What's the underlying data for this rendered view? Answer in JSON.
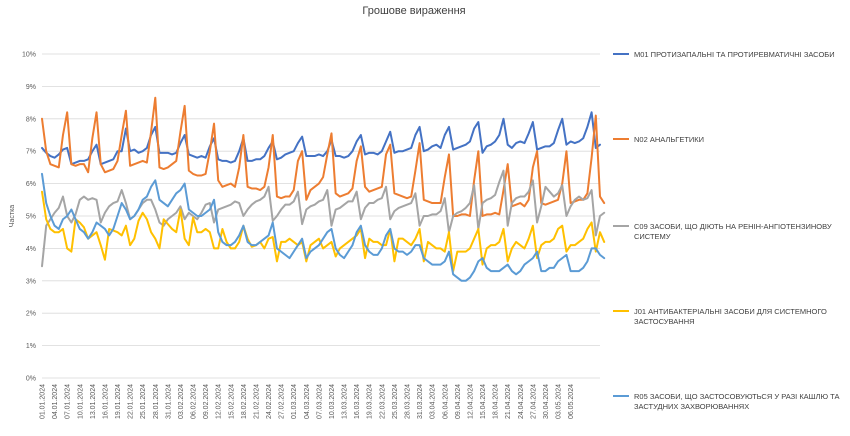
{
  "chart_data": {
    "type": "line",
    "title": "Грошове вираження",
    "xlabel": "",
    "ylabel": "Частка",
    "ylim": [
      0,
      10
    ],
    "yticks": [
      "0%",
      "1%",
      "2%",
      "3%",
      "4%",
      "5%",
      "6%",
      "7%",
      "8%",
      "9%",
      "10%"
    ],
    "x_start": "01.01.2024",
    "x_end": "07.05.2024",
    "x_tick_labels": [
      "01.01.2024",
      "04.01.2024",
      "07.01.2024",
      "10.01.2024",
      "13.01.2024",
      "16.01.2024",
      "19.01.2024",
      "22.01.2024",
      "25.01.2024",
      "28.01.2024",
      "31.01.2024",
      "03.02.2024",
      "06.02.2024",
      "09.02.2024",
      "12.02.2024",
      "15.02.2024",
      "18.02.2024",
      "21.02.2024",
      "24.02.2024",
      "27.02.2024",
      "01.03.2024",
      "04.03.2024",
      "07.03.2024",
      "10.03.2024",
      "13.03.2024",
      "16.03.2024",
      "19.03.2024",
      "22.03.2024",
      "25.03.2024",
      "28.03.2024",
      "31.03.2024",
      "03.04.2024",
      "06.04.2024",
      "09.04.2024",
      "12.04.2024",
      "15.04.2024",
      "18.04.2024",
      "21.04.2024",
      "24.04.2024",
      "27.04.2024",
      "30.04.2024",
      "03.05.2024",
      "06.05.2024"
    ],
    "grid": true,
    "legend_position": "right",
    "series": [
      {
        "name": "M01 ПРОТИЗАПАЛЬНІ ТА ПРОТИРЕВМАТИЧНІ ЗАСОБИ",
        "color": "#4472C4",
        "values": [
          7.1,
          6.95,
          6.85,
          6.8,
          6.9,
          7.05,
          7.1,
          6.6,
          6.65,
          6.7,
          6.7,
          6.75,
          7.0,
          7.2,
          6.6,
          6.65,
          6.7,
          6.75,
          7.0,
          7.0,
          7.7,
          7.0,
          7.05,
          6.95,
          7.0,
          7.1,
          7.5,
          7.75,
          6.95,
          6.95,
          6.95,
          6.9,
          6.95,
          7.25,
          7.5,
          6.9,
          6.85,
          6.8,
          6.85,
          6.8,
          7.15,
          7.4,
          6.75,
          6.7,
          6.7,
          6.65,
          6.7,
          7.0,
          7.4,
          6.7,
          6.7,
          6.75,
          6.75,
          6.85,
          7.1,
          7.3,
          6.75,
          6.8,
          6.9,
          6.95,
          7.0,
          7.25,
          7.45,
          6.85,
          6.85,
          6.85,
          6.9,
          6.85,
          7.0,
          7.35,
          6.85,
          6.85,
          6.8,
          6.85,
          7.0,
          7.3,
          7.5,
          6.9,
          6.95,
          6.95,
          6.9,
          7.0,
          7.3,
          7.6,
          6.95,
          7.0,
          7.0,
          7.05,
          7.1,
          7.5,
          7.75,
          7.0,
          7.05,
          7.15,
          7.2,
          7.1,
          7.5,
          7.75,
          7.05,
          7.1,
          7.15,
          7.2,
          7.3,
          7.7,
          7.9,
          6.95,
          7.15,
          7.2,
          7.3,
          7.5,
          8.0,
          7.2,
          7.1,
          7.25,
          7.3,
          7.25,
          7.55,
          7.9,
          7.05,
          7.1,
          7.15,
          7.15,
          7.25,
          7.65,
          8.0,
          7.2,
          7.3,
          7.25,
          7.3,
          7.4,
          7.75,
          8.2,
          7.1,
          7.2
        ]
      },
      {
        "name": "N02 АНАЛЬГЕТИКИ",
        "color": "#ED7D31",
        "values": [
          8.0,
          7.0,
          6.6,
          6.55,
          6.5,
          7.5,
          8.2,
          6.6,
          6.55,
          6.6,
          6.6,
          6.35,
          7.4,
          8.2,
          6.6,
          6.35,
          6.4,
          6.45,
          6.7,
          7.5,
          8.25,
          6.55,
          6.6,
          6.65,
          6.7,
          6.65,
          7.6,
          8.65,
          6.5,
          6.45,
          6.5,
          6.6,
          6.7,
          7.6,
          8.4,
          6.4,
          6.3,
          6.25,
          6.25,
          6.3,
          7.0,
          7.85,
          6.1,
          5.9,
          5.95,
          6.0,
          5.9,
          6.5,
          7.5,
          5.9,
          5.85,
          5.85,
          5.8,
          5.9,
          6.5,
          7.5,
          5.6,
          5.55,
          5.6,
          5.6,
          5.8,
          6.7,
          7.0,
          5.5,
          5.8,
          5.9,
          6.0,
          6.2,
          6.9,
          7.55,
          5.7,
          5.6,
          5.65,
          5.7,
          5.85,
          6.7,
          7.15,
          5.9,
          5.75,
          5.8,
          5.85,
          5.9,
          6.9,
          7.2,
          5.7,
          5.65,
          5.6,
          5.55,
          5.6,
          6.4,
          7.25,
          5.5,
          5.45,
          5.4,
          5.4,
          5.4,
          6.2,
          6.9,
          5.0,
          5.0,
          5.05,
          5.05,
          5.0,
          6.1,
          7.0,
          5.0,
          5.05,
          5.05,
          5.1,
          5.05,
          5.8,
          6.6,
          5.3,
          5.35,
          5.4,
          5.3,
          5.5,
          6.5,
          7.0,
          5.4,
          5.35,
          5.4,
          5.45,
          5.5,
          6.0,
          7.0,
          5.4,
          5.45,
          5.5,
          5.5,
          5.7,
          6.8,
          8.1,
          5.6,
          5.4
        ]
      },
      {
        "name": "C09 ЗАСОБИ, ЩО ДІЮТЬ НА РЕНІН-АНГІОТЕНЗИНОВУ СИСТЕМУ",
        "color": "#A5A5A5",
        "values": [
          3.45,
          4.7,
          4.9,
          5.1,
          5.25,
          5.6,
          5.0,
          4.8,
          5.05,
          5.5,
          5.6,
          5.5,
          5.55,
          5.5,
          4.8,
          5.1,
          5.3,
          5.4,
          5.45,
          5.8,
          5.4,
          4.9,
          5.0,
          5.2,
          5.4,
          5.5,
          5.5,
          5.2,
          4.8,
          4.7,
          4.9,
          5.0,
          5.1,
          5.3,
          4.9,
          5.1,
          5.0,
          4.9,
          5.1,
          5.35,
          5.4,
          4.8,
          5.2,
          5.25,
          5.3,
          5.35,
          5.45,
          5.4,
          5.0,
          5.2,
          5.35,
          5.45,
          5.5,
          5.6,
          5.9,
          4.85,
          5.0,
          5.2,
          5.35,
          5.35,
          5.45,
          5.75,
          4.75,
          5.2,
          5.3,
          5.35,
          5.45,
          5.5,
          5.8,
          4.7,
          5.2,
          5.25,
          5.35,
          5.45,
          5.45,
          5.75,
          4.9,
          5.25,
          5.4,
          5.4,
          5.5,
          5.55,
          5.9,
          4.9,
          5.15,
          5.25,
          5.3,
          5.35,
          5.4,
          5.7,
          4.7,
          5.0,
          5.0,
          5.05,
          5.05,
          5.15,
          5.55,
          4.5,
          5.0,
          5.1,
          5.15,
          5.25,
          5.4,
          5.95,
          4.6,
          5.4,
          5.5,
          5.55,
          5.65,
          6.05,
          6.4,
          4.7,
          5.4,
          5.55,
          5.6,
          5.6,
          5.75,
          6.1,
          4.8,
          5.3,
          5.9,
          5.75,
          5.6,
          5.7,
          5.95,
          5.0,
          5.3,
          5.5,
          5.6,
          5.5,
          5.55,
          5.8,
          4.4,
          5.0,
          5.1
        ]
      },
      {
        "name": "J01 АНТИБАКТЕРІАЛЬНІ ЗАСОБИ ДЛЯ СИСТЕМНОГО ЗАСТОСУВАННЯ",
        "color": "#FFC000",
        "values": [
          5.75,
          4.9,
          4.6,
          4.5,
          4.5,
          4.6,
          4.0,
          3.9,
          4.9,
          4.8,
          4.65,
          4.3,
          4.4,
          4.5,
          4.1,
          3.65,
          4.6,
          4.55,
          4.5,
          4.4,
          4.7,
          4.1,
          4.3,
          4.85,
          5.1,
          4.9,
          4.5,
          4.3,
          4.0,
          4.9,
          4.75,
          4.6,
          4.5,
          5.2,
          4.3,
          4.1,
          4.95,
          4.5,
          4.5,
          4.6,
          4.5,
          4.0,
          4.0,
          4.6,
          4.2,
          4.0,
          4.0,
          4.2,
          4.7,
          4.3,
          4.05,
          4.1,
          4.2,
          4.0,
          4.3,
          4.35,
          3.6,
          4.2,
          4.2,
          4.3,
          4.2,
          4.1,
          4.2,
          3.6,
          4.1,
          4.2,
          4.3,
          4.0,
          4.1,
          4.2,
          3.75,
          4.0,
          4.1,
          4.2,
          4.3,
          4.4,
          4.6,
          3.7,
          4.3,
          4.2,
          4.2,
          4.1,
          4.1,
          4.6,
          3.6,
          4.3,
          4.3,
          4.2,
          4.1,
          4.3,
          4.6,
          3.6,
          4.2,
          4.1,
          4.0,
          4.0,
          3.9,
          4.5,
          3.3,
          3.9,
          3.9,
          3.9,
          4.0,
          4.3,
          4.6,
          3.5,
          4.0,
          4.1,
          4.1,
          4.2,
          4.6,
          3.6,
          4.0,
          4.2,
          4.1,
          4.0,
          4.3,
          4.7,
          3.7,
          4.1,
          4.2,
          4.2,
          4.3,
          4.6,
          4.7,
          3.9,
          4.1,
          4.1,
          4.2,
          4.3,
          4.6,
          4.8,
          3.9,
          4.5,
          4.2
        ]
      },
      {
        "name": "R05 ЗАСОБИ, ЩО ЗАСТОСОВУЮТЬСЯ У РАЗІ КАШЛЮ ТА ЗАСТУДНИХ ЗАХВОРЮВАННЯХ",
        "color": "#5B9BD5",
        "values": [
          6.3,
          5.4,
          5.0,
          4.7,
          4.6,
          4.9,
          5.0,
          5.2,
          4.9,
          4.6,
          4.5,
          4.3,
          4.5,
          4.8,
          4.7,
          4.6,
          4.4,
          4.6,
          5.0,
          5.4,
          5.2,
          4.9,
          5.0,
          5.2,
          5.5,
          5.6,
          5.9,
          6.1,
          5.5,
          5.4,
          5.3,
          5.5,
          5.7,
          5.8,
          6.0,
          5.2,
          5.1,
          5.0,
          5.0,
          5.1,
          5.2,
          5.5,
          4.5,
          4.2,
          4.1,
          4.1,
          4.2,
          4.4,
          4.7,
          4.2,
          4.1,
          4.1,
          4.2,
          4.3,
          4.4,
          4.8,
          4.0,
          3.9,
          3.8,
          3.7,
          3.9,
          4.1,
          4.3,
          3.7,
          3.9,
          4.0,
          4.1,
          4.3,
          4.5,
          4.6,
          4.0,
          3.8,
          3.7,
          3.9,
          4.1,
          4.5,
          4.7,
          4.1,
          3.9,
          3.8,
          3.8,
          4.0,
          4.4,
          4.6,
          4.0,
          3.9,
          3.9,
          3.8,
          3.9,
          4.1,
          4.1,
          3.7,
          3.6,
          3.5,
          3.5,
          3.5,
          3.6,
          3.9,
          3.2,
          3.1,
          3.0,
          3.0,
          3.1,
          3.3,
          3.6,
          3.7,
          3.4,
          3.3,
          3.3,
          3.3,
          3.4,
          3.5,
          3.3,
          3.2,
          3.3,
          3.5,
          3.6,
          3.7,
          3.9,
          3.3,
          3.3,
          3.4,
          3.4,
          3.6,
          3.7,
          3.8,
          3.3,
          3.3,
          3.3,
          3.4,
          3.6,
          4.0,
          4.0,
          3.8,
          3.7
        ]
      }
    ]
  }
}
